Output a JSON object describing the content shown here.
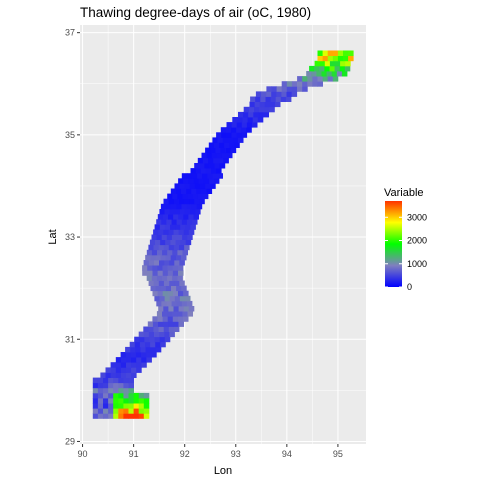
{
  "chart_data": {
    "type": "heatmap",
    "title": "Thawing degree-days of air (oC, 1980)",
    "xlabel": "Lon",
    "ylabel": "Lat",
    "xlim": [
      89.95,
      95.55
    ],
    "ylim": [
      28.95,
      37.15
    ],
    "x_ticks": [
      90,
      91,
      92,
      93,
      94,
      95
    ],
    "y_ticks": [
      29,
      31,
      33,
      35,
      37
    ],
    "grid": true,
    "legend": {
      "title": "Variable",
      "position": "right",
      "ticks": [
        0,
        1000,
        2000,
        3000
      ],
      "range": [
        0,
        3700
      ],
      "colors": [
        "#0000ff",
        "#7f7fbf",
        "#00ff00",
        "#ffff00",
        "#ff3300"
      ]
    },
    "approx_values": {
      "description_points": [
        {
          "lon": 94.9,
          "lat": 36.45,
          "value": 2500
        },
        {
          "lon": 94.7,
          "lat": 36.1,
          "value": 1100
        },
        {
          "lon": 93.8,
          "lat": 35.8,
          "value": 600
        },
        {
          "lon": 92.9,
          "lat": 35.0,
          "value": 150
        },
        {
          "lon": 91.9,
          "lat": 33.6,
          "value": 150
        },
        {
          "lon": 91.5,
          "lat": 32.3,
          "value": 800
        },
        {
          "lon": 91.8,
          "lat": 31.5,
          "value": 800
        },
        {
          "lon": 91.0,
          "lat": 30.6,
          "value": 300
        },
        {
          "lon": 90.5,
          "lat": 30.1,
          "value": 500
        },
        {
          "lon": 90.9,
          "lat": 29.7,
          "value": 2200
        },
        {
          "lon": 91.1,
          "lat": 29.55,
          "value": 3000
        }
      ]
    }
  }
}
